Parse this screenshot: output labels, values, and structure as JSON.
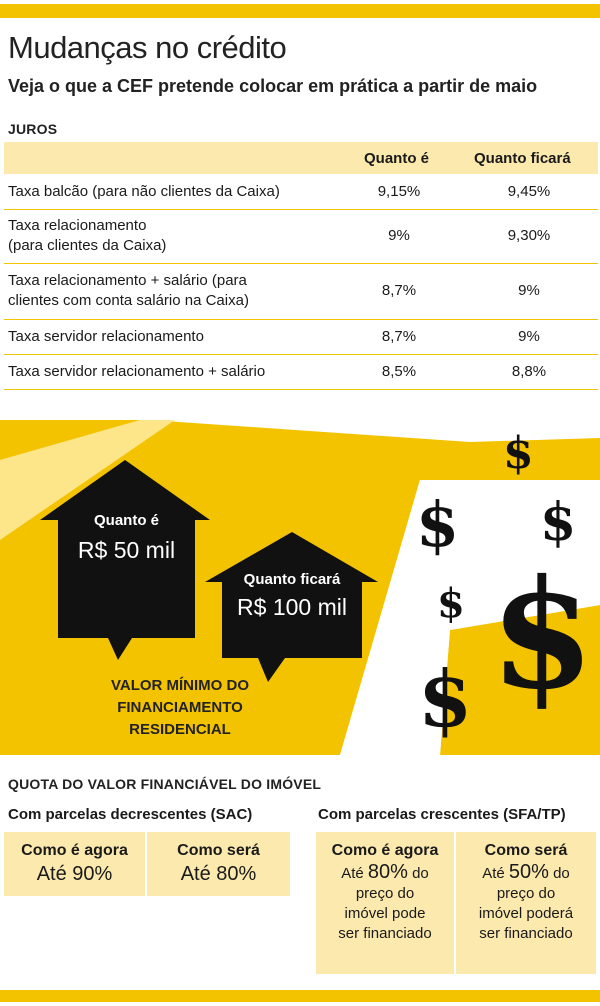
{
  "header": {
    "title": "Mudanças no crédito",
    "subtitle": "Veja o que a CEF pretende colocar em prática a partir de maio"
  },
  "juros": {
    "label": "JUROS",
    "columns": [
      "Quanto é",
      "Quanto ficará"
    ],
    "rows": [
      {
        "label_lines": [
          "Taxa balcão (para não clientes da Caixa)"
        ],
        "now": "9,15%",
        "future": "9,45%"
      },
      {
        "label_lines": [
          "Taxa relacionamento",
          "(para clientes da Caixa)"
        ],
        "now": "9%",
        "future": "9,30%"
      },
      {
        "label_lines": [
          "Taxa relacionamento + salário (para",
          "clientes com conta salário na Caixa)"
        ],
        "now": "8,7%",
        "future": "9%"
      },
      {
        "label_lines": [
          "Taxa servidor relacionamento"
        ],
        "now": "8,7%",
        "future": "9%"
      },
      {
        "label_lines": [
          "Taxa servidor relacionamento + salário"
        ],
        "now": "8,5%",
        "future": "8,8%"
      }
    ]
  },
  "minimum": {
    "house_now": {
      "label": "Quanto é",
      "value": "R$ 50 mil"
    },
    "house_future": {
      "label": "Quanto ficará",
      "value": "R$ 100 mil"
    },
    "caption_lines": [
      "VALOR MÍNIMO DO",
      "FINANCIAMENTO",
      "RESIDENCIAL"
    ],
    "dollar_glyph": "$"
  },
  "quota": {
    "label": "QUOTA DO VALOR FINANCIÁVEL DO IMÓVEL",
    "sac": {
      "title": "Com parcelas decrescentes (SAC)",
      "now_head": "Como é agora",
      "now_value": "Até 90%",
      "future_head": "Como será",
      "future_value": "Até 80%"
    },
    "sfa": {
      "title": "Com parcelas crescentes (SFA/TP)",
      "now_head": "Como é agora",
      "now_prefix": "Até",
      "now_pct": "80%",
      "now_suffix": "do",
      "now_lines": [
        "preço do",
        "imóvel pode",
        "ser financiado"
      ],
      "future_head": "Como será",
      "future_prefix": "Até",
      "future_pct": "50%",
      "future_suffix": "do",
      "future_lines": [
        "preço do",
        "imóvel poderá",
        "ser financiado"
      ]
    }
  },
  "colors": {
    "accent": "#f4c300",
    "light": "#fbe9ae",
    "dark": "#111111"
  }
}
